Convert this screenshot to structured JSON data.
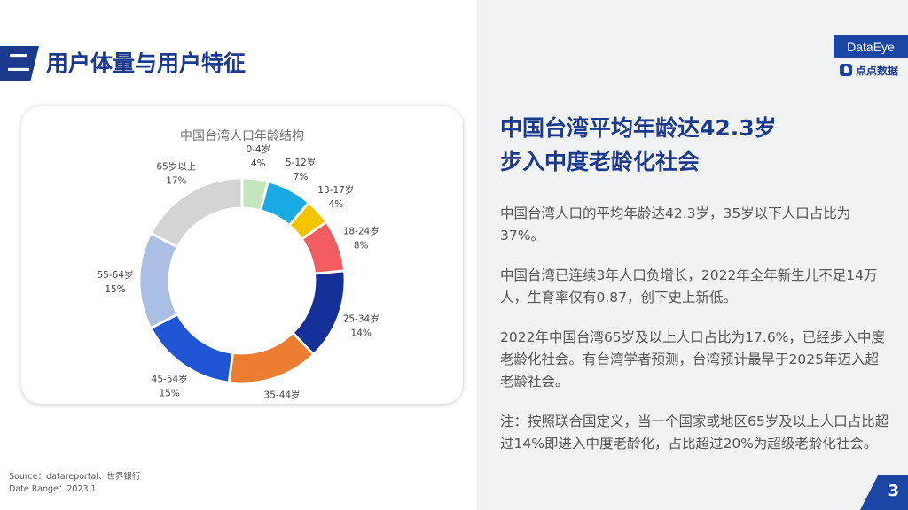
{
  "section": {
    "number": "二",
    "title": "用户体量与用户特征"
  },
  "brand": {
    "name": "DataEye",
    "name_cn": "点点数据",
    "color": "#1c46a6"
  },
  "chart_data": {
    "type": "pie",
    "style": "donut",
    "title": "中国台湾人口年龄结构",
    "slices": [
      {
        "label": "0-4岁",
        "value": 4,
        "display": "4%",
        "color": "#c3e6bd"
      },
      {
        "label": "5-12岁",
        "value": 7,
        "display": "7%",
        "color": "#1aaae6"
      },
      {
        "label": "13-17岁",
        "value": 4,
        "display": "4%",
        "color": "#f5c400"
      },
      {
        "label": "18-24岁",
        "value": 8,
        "display": "8%",
        "color": "#f25c60"
      },
      {
        "label": "25-34岁",
        "value": 14,
        "display": "14%",
        "color": "#16309a"
      },
      {
        "label": "35-44岁",
        "value": 14,
        "display": "14%",
        "color": "#ee7d32"
      },
      {
        "label": "45-54岁",
        "value": 15,
        "display": "15%",
        "color": "#2055d6"
      },
      {
        "label": "55-64岁",
        "value": 15,
        "display": "15%",
        "color": "#aabfe3"
      },
      {
        "label": "65岁以上",
        "value": 17,
        "display": "17%",
        "color": "#d4d4d4"
      }
    ]
  },
  "source": {
    "line1": "Source：datareportal、世界银行",
    "line2": "Date Range：2023.1"
  },
  "headline": {
    "line1": "中国台湾平均年龄达42.3岁",
    "line2": "步入中度老龄化社会"
  },
  "paragraphs": {
    "p1": "中国台湾人口的平均年龄达42.3岁，35岁以下人口占比为37%。",
    "p2": "中国台湾已连续3年人口负增长，2022年全年新生儿不足14万人，生育率仅有0.87，创下史上新低。",
    "p3": "2022年中国台湾65岁及以上人口占比为17.6%，已经步入中度老龄化社会。有台湾学者预测，台湾预计最早于2025年迈入超老龄社会。",
    "p4": "注：按照联合国定义，当一个国家或地区65岁及以上人口占比超过14%即进入中度老龄化，占比超过20%为超级老龄化社会。"
  },
  "page": {
    "number": "3"
  }
}
